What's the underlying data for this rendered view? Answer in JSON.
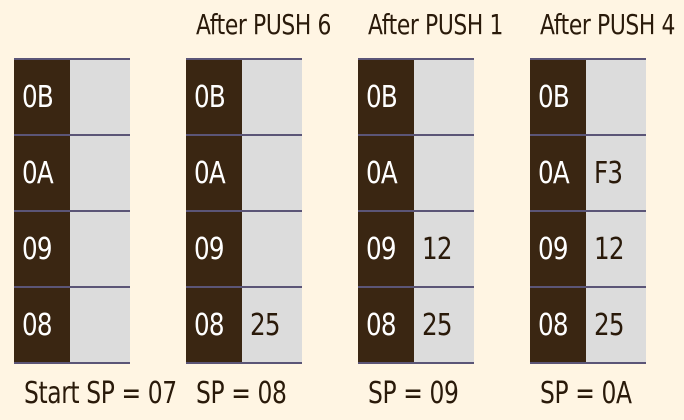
{
  "stacks": [
    {
      "title": "",
      "rows": [
        {
          "addr": "0B",
          "value": ""
        },
        {
          "addr": "0A",
          "value": ""
        },
        {
          "addr": "09",
          "value": ""
        },
        {
          "addr": "08",
          "value": ""
        }
      ],
      "sp": "Start SP = 07"
    },
    {
      "title": "After PUSH 6",
      "rows": [
        {
          "addr": "0B",
          "value": ""
        },
        {
          "addr": "0A",
          "value": ""
        },
        {
          "addr": "09",
          "value": ""
        },
        {
          "addr": "08",
          "value": "25"
        }
      ],
      "sp": "SP = 08"
    },
    {
      "title": "After PUSH 1",
      "rows": [
        {
          "addr": "0B",
          "value": ""
        },
        {
          "addr": "0A",
          "value": ""
        },
        {
          "addr": "09",
          "value": "12"
        },
        {
          "addr": "08",
          "value": "25"
        }
      ],
      "sp": "SP = 09"
    },
    {
      "title": "After PUSH 4",
      "rows": [
        {
          "addr": "0B",
          "value": ""
        },
        {
          "addr": "0A",
          "value": "F3"
        },
        {
          "addr": "09",
          "value": "12"
        },
        {
          "addr": "08",
          "value": "25"
        }
      ],
      "sp": "SP = 0A"
    }
  ]
}
